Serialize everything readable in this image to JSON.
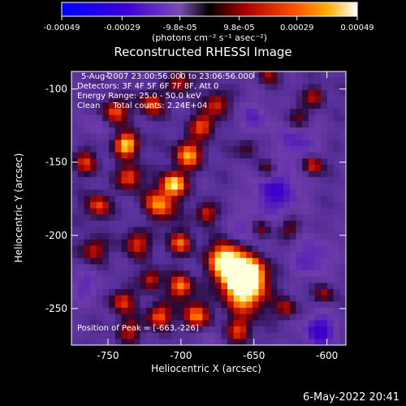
{
  "chart_data": {
    "type": "heatmap",
    "title": "Reconstructed RHESSI Image",
    "xlabel": "Heliocentric X (arcsec)",
    "ylabel": "Heliocentric Y (arcsec)",
    "xlim": [
      -775,
      -587
    ],
    "ylim": [
      -275,
      -88
    ],
    "x_ticks": [
      -750,
      -700,
      -650,
      -600
    ],
    "x_tick_labels": [
      "-750",
      "-700",
      "-650",
      "-600"
    ],
    "y_ticks": [
      -100,
      -150,
      -200,
      -250
    ],
    "y_tick_labels": [
      "-100",
      "-150",
      "-200",
      "-250"
    ],
    "colorbar": {
      "range": [
        -0.00049,
        0.00049
      ],
      "tick_values": [
        -0.00049,
        -0.00029,
        -9.8e-05,
        9.8e-05,
        0.00029,
        0.00049
      ],
      "tick_labels": [
        "-0.00049",
        "-0.00029",
        "-9.8e-05",
        "9.8e-05",
        "0.00029",
        "0.00049"
      ],
      "units_label": "(photons cm⁻² s⁻¹ asec⁻²)"
    },
    "annotations": [
      "5-Aug-2007 23:00:56.000 to 23:06:56.000",
      "Detectors: 3F 4F 5F 6F 7F 8F, Att 0",
      "Energy Range: 25.0 - 50.0 keV",
      "Clean     Total counts: 2.24E+04"
    ],
    "peak_label": "Position of Peak = [-663,-226]",
    "peak": [
      -663,
      -226
    ],
    "blobs": [
      {
        "x": -663,
        "y": -226,
        "v": 1.0,
        "r": 9
      },
      {
        "x": -655,
        "y": -240,
        "v": 0.85,
        "r": 10
      },
      {
        "x": -670,
        "y": -215,
        "v": 0.75,
        "r": 8
      },
      {
        "x": -650,
        "y": -225,
        "v": 0.6,
        "r": 7
      },
      {
        "x": -737,
        "y": -138,
        "v": 0.9,
        "r": 6
      },
      {
        "x": -745,
        "y": -115,
        "v": 0.6,
        "r": 6
      },
      {
        "x": -720,
        "y": -110,
        "v": 0.55,
        "r": 6
      },
      {
        "x": -705,
        "y": -165,
        "v": 0.9,
        "r": 6
      },
      {
        "x": -715,
        "y": -180,
        "v": 0.7,
        "r": 8
      },
      {
        "x": -695,
        "y": -145,
        "v": 0.7,
        "r": 7
      },
      {
        "x": -685,
        "y": -125,
        "v": 0.55,
        "r": 6
      },
      {
        "x": -675,
        "y": -110,
        "v": 0.5,
        "r": 6
      },
      {
        "x": -700,
        "y": -235,
        "v": 0.7,
        "r": 6
      },
      {
        "x": -690,
        "y": -255,
        "v": 0.6,
        "r": 7
      },
      {
        "x": -715,
        "y": -255,
        "v": 0.6,
        "r": 6
      },
      {
        "x": -740,
        "y": -245,
        "v": 0.5,
        "r": 6
      },
      {
        "x": -757,
        "y": -180,
        "v": 0.55,
        "r": 6
      },
      {
        "x": -760,
        "y": -210,
        "v": 0.45,
        "r": 6
      },
      {
        "x": -730,
        "y": -205,
        "v": 0.45,
        "r": 7
      },
      {
        "x": -700,
        "y": -205,
        "v": 0.55,
        "r": 6
      },
      {
        "x": -683,
        "y": -185,
        "v": 0.5,
        "r": 5
      },
      {
        "x": -640,
        "y": -155,
        "v": 0.35,
        "r": 5
      },
      {
        "x": -610,
        "y": -152,
        "v": 0.55,
        "r": 5
      },
      {
        "x": -620,
        "y": -120,
        "v": 0.3,
        "r": 6
      },
      {
        "x": -608,
        "y": -105,
        "v": 0.35,
        "r": 5
      },
      {
        "x": -628,
        "y": -250,
        "v": 0.35,
        "r": 5
      },
      {
        "x": -602,
        "y": -240,
        "v": 0.3,
        "r": 5
      },
      {
        "x": -645,
        "y": -195,
        "v": 0.4,
        "r": 5
      },
      {
        "x": -735,
        "y": -265,
        "v": 0.35,
        "r": 6
      },
      {
        "x": -660,
        "y": -265,
        "v": 0.45,
        "r": 6
      },
      {
        "x": -720,
        "y": -230,
        "v": 0.5,
        "r": 5
      },
      {
        "x": -735,
        "y": -160,
        "v": 0.6,
        "r": 6
      },
      {
        "x": -700,
        "y": -95,
        "v": 0.4,
        "r": 6
      },
      {
        "x": -765,
        "y": -150,
        "v": 0.4,
        "r": 6
      },
      {
        "x": -640,
        "y": -90,
        "v": 0.25,
        "r": 5
      },
      {
        "x": -655,
        "y": -140,
        "v": 0.25,
        "r": 5
      },
      {
        "x": -625,
        "y": -195,
        "v": 0.3,
        "r": 5
      }
    ],
    "dips": [
      {
        "x": -635,
        "y": -170,
        "v": 0.7,
        "r": 12
      },
      {
        "x": -620,
        "y": -135,
        "v": 0.5,
        "r": 10
      },
      {
        "x": -605,
        "y": -265,
        "v": 0.8,
        "r": 8
      },
      {
        "x": -655,
        "y": -195,
        "v": 0.4,
        "r": 8
      },
      {
        "x": -610,
        "y": -215,
        "v": 0.5,
        "r": 10
      },
      {
        "x": -650,
        "y": -120,
        "v": 0.4,
        "r": 9
      },
      {
        "x": -765,
        "y": -235,
        "v": 0.4,
        "r": 8
      },
      {
        "x": -725,
        "y": -190,
        "v": 0.3,
        "r": 6
      },
      {
        "x": -685,
        "y": -270,
        "v": 0.3,
        "r": 6
      },
      {
        "x": -760,
        "y": -125,
        "v": 0.3,
        "r": 6
      }
    ]
  },
  "footer": {
    "date_stamp": "6-May-2022 20:41"
  }
}
